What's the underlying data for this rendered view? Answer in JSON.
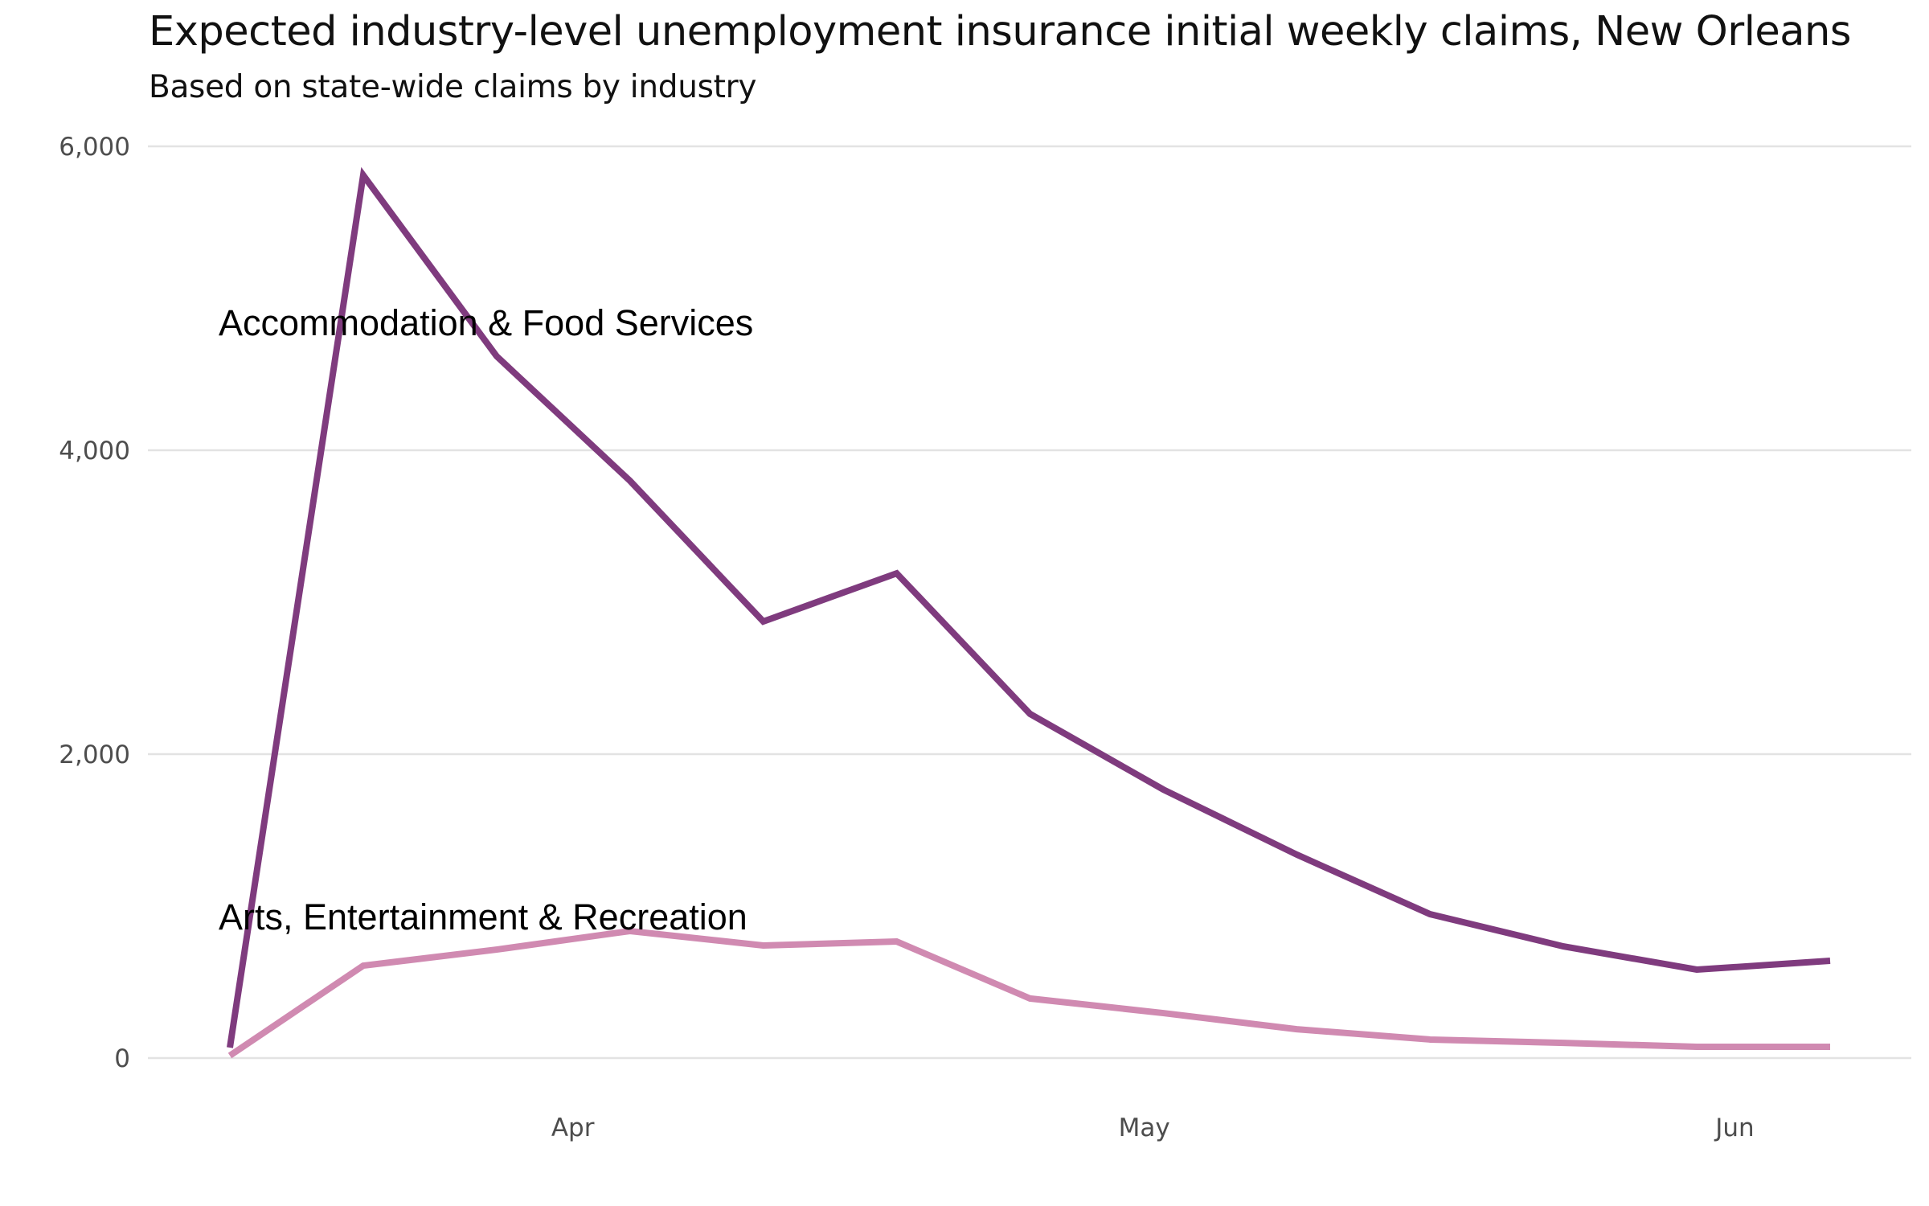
{
  "chart_data": {
    "type": "line",
    "title": "Expected industry-level unemployment insurance initial weekly claims, New Orleans",
    "subtitle": "Based on state-wide claims by industry",
    "xlabel": "",
    "ylabel": "",
    "x": [
      "2020-03-14",
      "2020-03-21",
      "2020-03-28",
      "2020-04-04",
      "2020-04-11",
      "2020-04-18",
      "2020-04-25",
      "2020-05-02",
      "2020-05-09",
      "2020-05-16",
      "2020-05-23",
      "2020-05-30",
      "2020-06-06"
    ],
    "x_ticks": [
      {
        "label": "Apr",
        "date": "2020-04-01"
      },
      {
        "label": "May",
        "date": "2020-05-01"
      },
      {
        "label": "Jun",
        "date": "2020-06-01"
      }
    ],
    "ylim": [
      0,
      6000
    ],
    "y_ticks": [
      {
        "value": 0,
        "label": "0"
      },
      {
        "value": 2000,
        "label": "2,000"
      },
      {
        "value": 4000,
        "label": "4,000"
      },
      {
        "value": 6000,
        "label": "6,000"
      }
    ],
    "grid": "horizontal",
    "legend": "none (direct labels)",
    "series": [
      {
        "name": "Accommodation & Food Services",
        "color": "#7f3b7e",
        "values": [
          69,
          5810,
          4619,
          3799,
          2873,
          3190,
          2265,
          1767,
          1339,
          947,
          735,
          582,
          640
        ],
        "annotation": {
          "text": "Accommodation & Food Services",
          "anchor_date_index": 0,
          "anchor_value": 4840
        }
      },
      {
        "name": "Arts, Entertainment & Recreation",
        "color": "#d08ab1",
        "values": [
          16,
          608,
          714,
          836,
          741,
          767,
          392,
          296,
          190,
          122,
          100,
          74,
          74
        ],
        "annotation": {
          "text": "Arts, Entertainment & Recreation",
          "anchor_date_index": 0,
          "anchor_value": 930
        }
      }
    ]
  }
}
